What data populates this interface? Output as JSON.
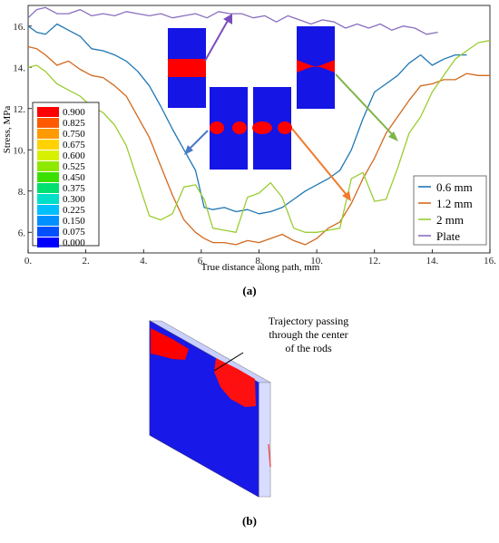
{
  "chart_data": {
    "type": "line",
    "xlabel": "True distance along path, mm",
    "ylabel": "Stress, MPa",
    "xlim": [
      0,
      16
    ],
    "ylim": [
      5,
      17
    ],
    "xticks": [
      "0.",
      "2.",
      "4.",
      "6.",
      "8.",
      "10.",
      "12.",
      "14.",
      "16."
    ],
    "yticks": [
      "6.",
      "8.",
      "10.",
      "12.",
      "14.",
      "16."
    ],
    "grid": false,
    "legend_position": "bottom-right",
    "series": [
      {
        "name": "0.6 mm",
        "color": "#1f77b4",
        "x": [
          0,
          0.3,
          0.6,
          1.0,
          1.4,
          1.8,
          2.2,
          2.6,
          3.0,
          3.4,
          3.8,
          4.2,
          4.6,
          5.0,
          5.4,
          5.8,
          6.1,
          6.4,
          6.8,
          7.2,
          7.6,
          8.0,
          8.4,
          8.8,
          9.2,
          9.6,
          10.0,
          10.4,
          10.8,
          11.2,
          11.6,
          12.0,
          12.4,
          12.8,
          13.2,
          13.6,
          14.0,
          14.4,
          14.8,
          15.2
        ],
        "values": [
          16.0,
          15.7,
          15.6,
          16.1,
          15.8,
          15.5,
          14.9,
          14.8,
          14.6,
          14.3,
          13.8,
          13.1,
          12.1,
          11.0,
          10.0,
          9.0,
          7.2,
          7.1,
          7.2,
          7.0,
          7.1,
          6.9,
          7.0,
          7.2,
          7.6,
          8.0,
          8.3,
          8.6,
          9.0,
          10.0,
          11.5,
          12.8,
          13.2,
          13.6,
          14.2,
          14.6,
          14.1,
          14.4,
          14.6,
          14.6
        ]
      },
      {
        "name": "1.2 mm",
        "color": "#d2691e",
        "x": [
          0,
          0.3,
          0.6,
          1.0,
          1.4,
          1.8,
          2.2,
          2.6,
          3.0,
          3.4,
          3.8,
          4.2,
          4.6,
          5.0,
          5.4,
          5.8,
          6.1,
          6.4,
          6.8,
          7.2,
          7.6,
          8.0,
          8.4,
          8.8,
          9.2,
          9.6,
          10.0,
          10.4,
          10.8,
          11.2,
          11.6,
          12.0,
          12.4,
          12.8,
          13.2,
          13.6,
          14.0,
          14.4,
          14.8,
          15.2,
          15.6,
          16.0
        ],
        "values": [
          15.0,
          14.9,
          14.6,
          14.1,
          14.3,
          13.9,
          13.6,
          13.5,
          13.1,
          12.6,
          11.6,
          10.6,
          9.2,
          7.8,
          6.6,
          6.0,
          5.7,
          5.5,
          5.5,
          5.4,
          5.6,
          5.5,
          5.7,
          5.9,
          5.6,
          5.4,
          5.7,
          6.2,
          6.5,
          7.4,
          8.6,
          9.6,
          10.8,
          11.6,
          12.4,
          13.1,
          13.2,
          13.4,
          13.4,
          13.7,
          13.6,
          13.6
        ]
      },
      {
        "name": "2 mm",
        "color": "#9acd32",
        "x": [
          0,
          0.3,
          0.6,
          1.0,
          1.4,
          1.8,
          2.2,
          2.6,
          3.0,
          3.4,
          3.8,
          4.2,
          4.6,
          5.0,
          5.4,
          5.8,
          6.1,
          6.4,
          6.8,
          7.2,
          7.6,
          8.0,
          8.4,
          8.8,
          9.2,
          9.6,
          10.0,
          10.4,
          10.8,
          11.2,
          11.6,
          12.0,
          12.4,
          12.8,
          13.2,
          13.6,
          14.0,
          14.4,
          14.8,
          15.2,
          15.6,
          16.0
        ],
        "values": [
          14.0,
          14.1,
          13.8,
          13.2,
          12.9,
          12.6,
          12.1,
          11.8,
          11.2,
          10.2,
          8.5,
          6.8,
          6.6,
          6.9,
          8.2,
          8.3,
          7.6,
          6.2,
          6.1,
          6.0,
          7.7,
          7.9,
          8.4,
          7.7,
          6.2,
          6.0,
          6.0,
          6.1,
          6.2,
          8.6,
          8.9,
          7.5,
          7.6,
          9.1,
          10.8,
          11.6,
          12.8,
          13.6,
          14.4,
          14.8,
          15.2,
          15.3
        ]
      },
      {
        "name": "Plate",
        "color": "#8a6fbf",
        "x": [
          0,
          0.3,
          0.6,
          1.0,
          1.4,
          1.8,
          2.2,
          2.6,
          3.0,
          3.4,
          3.8,
          4.2,
          4.6,
          5.0,
          5.4,
          5.8,
          6.2,
          6.6,
          7.0,
          7.4,
          7.8,
          8.2,
          8.6,
          9.0,
          9.4,
          9.8,
          10.2,
          10.6,
          11.0,
          11.4,
          11.8,
          12.2,
          12.6,
          13.0,
          13.4,
          13.8,
          14.2
        ],
        "values": [
          16.4,
          16.8,
          16.9,
          16.6,
          16.6,
          16.8,
          16.5,
          16.6,
          16.5,
          16.7,
          16.6,
          16.5,
          16.6,
          16.4,
          16.5,
          16.6,
          16.4,
          16.7,
          16.6,
          16.6,
          16.4,
          16.5,
          16.2,
          16.5,
          16.3,
          16.1,
          16.3,
          16.2,
          15.9,
          16.1,
          15.9,
          16.1,
          15.8,
          16.0,
          15.9,
          15.6,
          15.7
        ]
      }
    ],
    "legend": [
      "0.6 mm",
      "1.2 mm",
      "2 mm",
      "Plate"
    ],
    "colorbar": {
      "labels": [
        "0.900",
        "0.825",
        "0.750",
        "0.675",
        "0.600",
        "0.525",
        "0.450",
        "0.375",
        "0.300",
        "0.225",
        "0.150",
        "0.075",
        "0.000"
      ],
      "colors": [
        "#ff0000",
        "#ff5a00",
        "#ff9a00",
        "#ffd200",
        "#d6f000",
        "#8fe800",
        "#3ce000",
        "#00e070",
        "#00e0c8",
        "#00bfff",
        "#0090ff",
        "#0050ff",
        "#0000ff"
      ]
    }
  },
  "figure": {
    "caption_a": "(a)",
    "caption_b": "(b)",
    "annotation_b": [
      "Trajectory passing",
      "through the center",
      "of the rods"
    ]
  }
}
